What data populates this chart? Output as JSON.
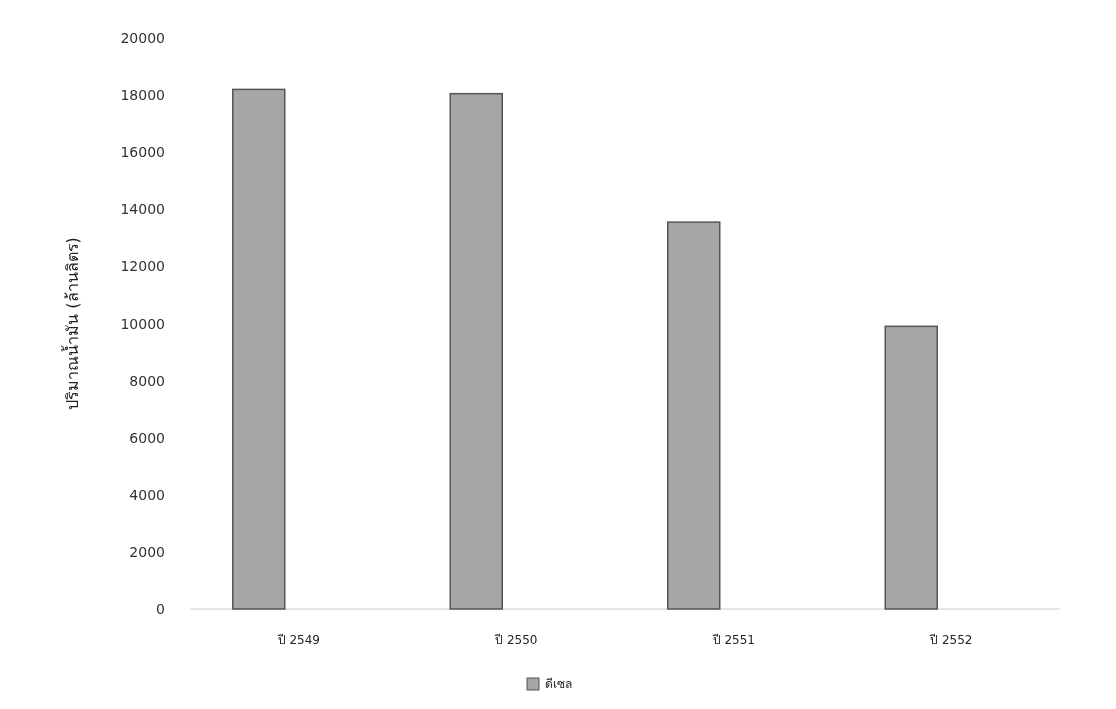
{
  "chart_data": {
    "type": "bar",
    "ylabel": "ปริมาณน้ำมัน (ล้านลิตร)",
    "categories": [
      "ปี 2549",
      "ปี 2550",
      "ปี 2551",
      "ปี 2552"
    ],
    "series": [
      {
        "name": "ดีเซล",
        "color": "#a6a6a6",
        "values": [
          18200,
          18050,
          13550,
          9900
        ]
      }
    ],
    "ylim": [
      0,
      20000
    ],
    "yticks": [
      0,
      2000,
      4000,
      6000,
      8000,
      10000,
      12000,
      14000,
      16000,
      18000,
      20000
    ],
    "legend": "bottom"
  }
}
